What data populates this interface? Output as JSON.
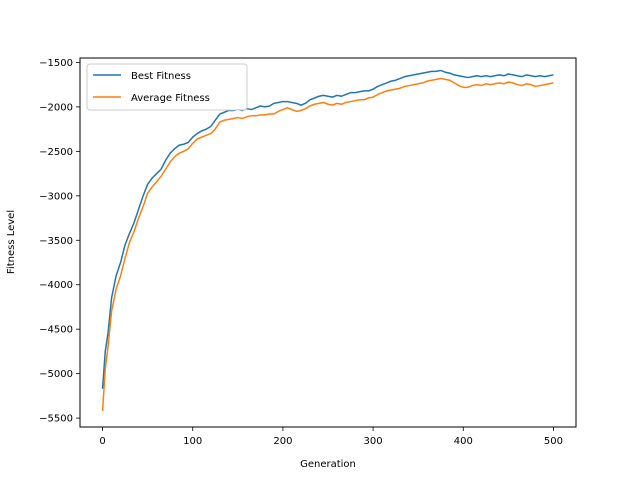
{
  "chart_data": {
    "type": "line",
    "title": "",
    "xlabel": "Generation",
    "ylabel": "Fitness Level",
    "xlim": [
      -25,
      525
    ],
    "ylim": [
      -5600,
      -1450
    ],
    "xticks": [
      0,
      100,
      200,
      300,
      400,
      500
    ],
    "yticks": [
      -5500,
      -5000,
      -4500,
      -4000,
      -3500,
      -3000,
      -2500,
      -2000,
      -1500
    ],
    "grid": false,
    "legend": "top-left",
    "series": [
      {
        "name": "Best Fitness",
        "color": "#1f77b4",
        "points": [
          [
            0,
            -5170
          ],
          [
            3,
            -4750
          ],
          [
            6,
            -4550
          ],
          [
            10,
            -4150
          ],
          [
            15,
            -3900
          ],
          [
            20,
            -3750
          ],
          [
            25,
            -3550
          ],
          [
            30,
            -3420
          ],
          [
            35,
            -3300
          ],
          [
            40,
            -3150
          ],
          [
            45,
            -3000
          ],
          [
            50,
            -2870
          ],
          [
            55,
            -2800
          ],
          [
            60,
            -2750
          ],
          [
            65,
            -2700
          ],
          [
            70,
            -2600
          ],
          [
            75,
            -2520
          ],
          [
            80,
            -2470
          ],
          [
            85,
            -2430
          ],
          [
            90,
            -2420
          ],
          [
            95,
            -2400
          ],
          [
            100,
            -2340
          ],
          [
            105,
            -2300
          ],
          [
            110,
            -2270
          ],
          [
            115,
            -2250
          ],
          [
            120,
            -2220
          ],
          [
            125,
            -2150
          ],
          [
            130,
            -2080
          ],
          [
            135,
            -2060
          ],
          [
            140,
            -2040
          ],
          [
            145,
            -2040
          ],
          [
            150,
            -2030
          ],
          [
            155,
            -2040
          ],
          [
            160,
            -2020
          ],
          [
            165,
            -2030
          ],
          [
            170,
            -2010
          ],
          [
            175,
            -1990
          ],
          [
            180,
            -2000
          ],
          [
            185,
            -1990
          ],
          [
            190,
            -1960
          ],
          [
            195,
            -1950
          ],
          [
            200,
            -1940
          ],
          [
            205,
            -1940
          ],
          [
            210,
            -1950
          ],
          [
            215,
            -1960
          ],
          [
            220,
            -1980
          ],
          [
            225,
            -1960
          ],
          [
            230,
            -1920
          ],
          [
            235,
            -1900
          ],
          [
            240,
            -1880
          ],
          [
            245,
            -1870
          ],
          [
            250,
            -1880
          ],
          [
            255,
            -1890
          ],
          [
            260,
            -1870
          ],
          [
            265,
            -1880
          ],
          [
            270,
            -1860
          ],
          [
            275,
            -1840
          ],
          [
            280,
            -1840
          ],
          [
            285,
            -1830
          ],
          [
            290,
            -1820
          ],
          [
            295,
            -1820
          ],
          [
            300,
            -1800
          ],
          [
            305,
            -1770
          ],
          [
            310,
            -1750
          ],
          [
            315,
            -1730
          ],
          [
            320,
            -1710
          ],
          [
            325,
            -1700
          ],
          [
            330,
            -1680
          ],
          [
            335,
            -1660
          ],
          [
            340,
            -1650
          ],
          [
            345,
            -1640
          ],
          [
            350,
            -1630
          ],
          [
            355,
            -1620
          ],
          [
            360,
            -1610
          ],
          [
            365,
            -1600
          ],
          [
            370,
            -1600
          ],
          [
            375,
            -1590
          ],
          [
            380,
            -1610
          ],
          [
            385,
            -1620
          ],
          [
            390,
            -1640
          ],
          [
            395,
            -1650
          ],
          [
            400,
            -1660
          ],
          [
            405,
            -1670
          ],
          [
            410,
            -1660
          ],
          [
            415,
            -1650
          ],
          [
            420,
            -1660
          ],
          [
            425,
            -1650
          ],
          [
            430,
            -1660
          ],
          [
            435,
            -1650
          ],
          [
            440,
            -1640
          ],
          [
            445,
            -1650
          ],
          [
            450,
            -1630
          ],
          [
            455,
            -1640
          ],
          [
            460,
            -1650
          ],
          [
            465,
            -1660
          ],
          [
            470,
            -1640
          ],
          [
            475,
            -1650
          ],
          [
            480,
            -1660
          ],
          [
            485,
            -1650
          ],
          [
            490,
            -1660
          ],
          [
            495,
            -1650
          ],
          [
            500,
            -1640
          ]
        ]
      },
      {
        "name": "Average Fitness",
        "color": "#ff7f0e",
        "points": [
          [
            0,
            -5420
          ],
          [
            3,
            -4950
          ],
          [
            6,
            -4700
          ],
          [
            10,
            -4300
          ],
          [
            15,
            -4050
          ],
          [
            20,
            -3900
          ],
          [
            25,
            -3700
          ],
          [
            30,
            -3520
          ],
          [
            35,
            -3400
          ],
          [
            40,
            -3250
          ],
          [
            45,
            -3120
          ],
          [
            50,
            -2970
          ],
          [
            55,
            -2900
          ],
          [
            60,
            -2840
          ],
          [
            65,
            -2780
          ],
          [
            70,
            -2700
          ],
          [
            75,
            -2620
          ],
          [
            80,
            -2560
          ],
          [
            85,
            -2520
          ],
          [
            90,
            -2500
          ],
          [
            95,
            -2470
          ],
          [
            100,
            -2410
          ],
          [
            105,
            -2360
          ],
          [
            110,
            -2340
          ],
          [
            115,
            -2320
          ],
          [
            120,
            -2300
          ],
          [
            125,
            -2250
          ],
          [
            130,
            -2170
          ],
          [
            135,
            -2150
          ],
          [
            140,
            -2140
          ],
          [
            145,
            -2130
          ],
          [
            150,
            -2120
          ],
          [
            155,
            -2130
          ],
          [
            160,
            -2110
          ],
          [
            165,
            -2100
          ],
          [
            170,
            -2100
          ],
          [
            175,
            -2090
          ],
          [
            180,
            -2090
          ],
          [
            185,
            -2080
          ],
          [
            190,
            -2080
          ],
          [
            195,
            -2050
          ],
          [
            200,
            -2030
          ],
          [
            205,
            -2010
          ],
          [
            210,
            -2030
          ],
          [
            215,
            -2050
          ],
          [
            220,
            -2040
          ],
          [
            225,
            -2020
          ],
          [
            230,
            -1990
          ],
          [
            235,
            -1970
          ],
          [
            240,
            -1960
          ],
          [
            245,
            -1950
          ],
          [
            250,
            -1970
          ],
          [
            255,
            -1980
          ],
          [
            260,
            -1960
          ],
          [
            265,
            -1970
          ],
          [
            270,
            -1950
          ],
          [
            275,
            -1940
          ],
          [
            280,
            -1930
          ],
          [
            285,
            -1920
          ],
          [
            290,
            -1920
          ],
          [
            295,
            -1900
          ],
          [
            300,
            -1890
          ],
          [
            305,
            -1860
          ],
          [
            310,
            -1840
          ],
          [
            315,
            -1820
          ],
          [
            320,
            -1810
          ],
          [
            325,
            -1800
          ],
          [
            330,
            -1790
          ],
          [
            335,
            -1770
          ],
          [
            340,
            -1760
          ],
          [
            345,
            -1750
          ],
          [
            350,
            -1740
          ],
          [
            355,
            -1730
          ],
          [
            360,
            -1710
          ],
          [
            365,
            -1700
          ],
          [
            370,
            -1690
          ],
          [
            375,
            -1680
          ],
          [
            380,
            -1690
          ],
          [
            385,
            -1700
          ],
          [
            390,
            -1730
          ],
          [
            395,
            -1760
          ],
          [
            400,
            -1780
          ],
          [
            405,
            -1780
          ],
          [
            410,
            -1760
          ],
          [
            415,
            -1750
          ],
          [
            420,
            -1760
          ],
          [
            425,
            -1740
          ],
          [
            430,
            -1750
          ],
          [
            435,
            -1740
          ],
          [
            440,
            -1730
          ],
          [
            445,
            -1740
          ],
          [
            450,
            -1720
          ],
          [
            455,
            -1730
          ],
          [
            460,
            -1750
          ],
          [
            465,
            -1760
          ],
          [
            470,
            -1740
          ],
          [
            475,
            -1750
          ],
          [
            480,
            -1770
          ],
          [
            485,
            -1760
          ],
          [
            490,
            -1750
          ],
          [
            495,
            -1740
          ],
          [
            500,
            -1730
          ]
        ]
      }
    ]
  }
}
